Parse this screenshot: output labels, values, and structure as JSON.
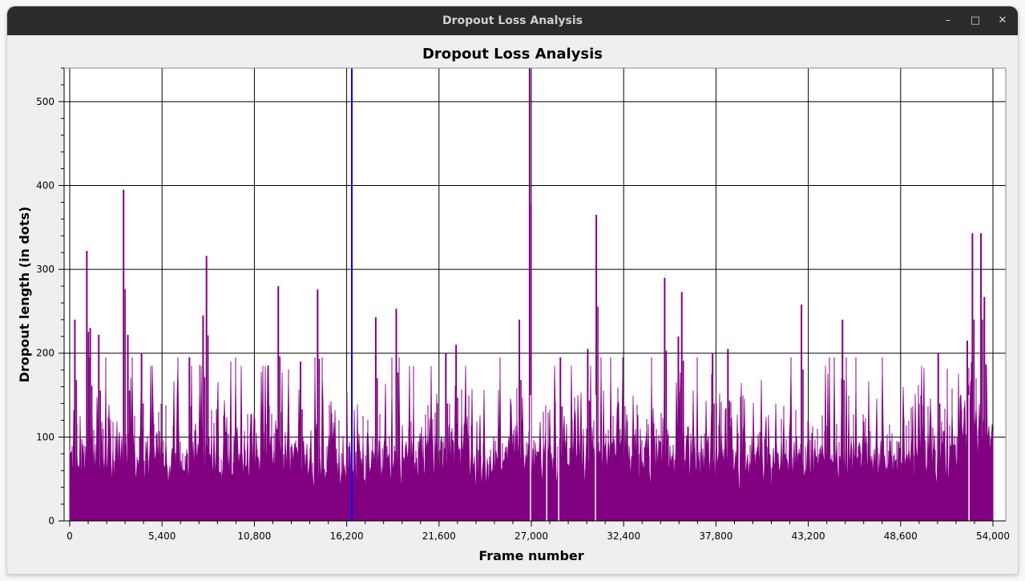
{
  "window": {
    "title": "Dropout Loss Analysis",
    "minimize_icon": "minimize-icon",
    "maximize_icon": "maximize-icon",
    "close_icon": "close-icon"
  },
  "chart_data": {
    "type": "area",
    "title": "Dropout Loss Analysis",
    "xlabel": "Frame number",
    "ylabel": "Dropout length (in dots)",
    "xlim": [
      0,
      54000
    ],
    "ylim": [
      0,
      540
    ],
    "xticks": [
      0,
      5400,
      10800,
      16200,
      21600,
      27000,
      32400,
      37800,
      43200,
      48600,
      54000
    ],
    "xtick_labels": [
      "0",
      "5,400",
      "10,800",
      "16,200",
      "21,600",
      "27,000",
      "32,400",
      "37,800",
      "43,200",
      "48,600",
      "54,000"
    ],
    "yticks": [
      0,
      100,
      200,
      300,
      400,
      500
    ],
    "ytick_labels": [
      "0",
      "100",
      "200",
      "300",
      "400",
      "500"
    ],
    "grid": true,
    "series_color": "#800080",
    "marker": {
      "x": 16500,
      "color": "#0000ff"
    },
    "peaks": [
      {
        "x": 300,
        "y": 240
      },
      {
        "x": 1000,
        "y": 322
      },
      {
        "x": 1200,
        "y": 230
      },
      {
        "x": 1700,
        "y": 222
      },
      {
        "x": 3150,
        "y": 395
      },
      {
        "x": 3400,
        "y": 222
      },
      {
        "x": 4200,
        "y": 200
      },
      {
        "x": 7000,
        "y": 195
      },
      {
        "x": 7800,
        "y": 245
      },
      {
        "x": 8000,
        "y": 316
      },
      {
        "x": 12200,
        "y": 280
      },
      {
        "x": 13500,
        "y": 190
      },
      {
        "x": 14500,
        "y": 276
      },
      {
        "x": 17900,
        "y": 243
      },
      {
        "x": 19100,
        "y": 253
      },
      {
        "x": 22000,
        "y": 200
      },
      {
        "x": 22600,
        "y": 210
      },
      {
        "x": 26300,
        "y": 240
      },
      {
        "x": 26900,
        "y": 540
      },
      {
        "x": 28700,
        "y": 195
      },
      {
        "x": 30300,
        "y": 205
      },
      {
        "x": 30800,
        "y": 365
      },
      {
        "x": 34800,
        "y": 290
      },
      {
        "x": 35600,
        "y": 220
      },
      {
        "x": 35800,
        "y": 273
      },
      {
        "x": 37600,
        "y": 200
      },
      {
        "x": 38500,
        "y": 205
      },
      {
        "x": 42800,
        "y": 258
      },
      {
        "x": 45200,
        "y": 240
      },
      {
        "x": 50800,
        "y": 200
      },
      {
        "x": 52500,
        "y": 215
      },
      {
        "x": 52800,
        "y": 343
      },
      {
        "x": 53300,
        "y": 343
      },
      {
        "x": 53500,
        "y": 267
      }
    ],
    "gaps": [
      {
        "x": 26950
      },
      {
        "x": 27900
      },
      {
        "x": 28600
      },
      {
        "x": 30750
      },
      {
        "x": 52600
      }
    ]
  }
}
